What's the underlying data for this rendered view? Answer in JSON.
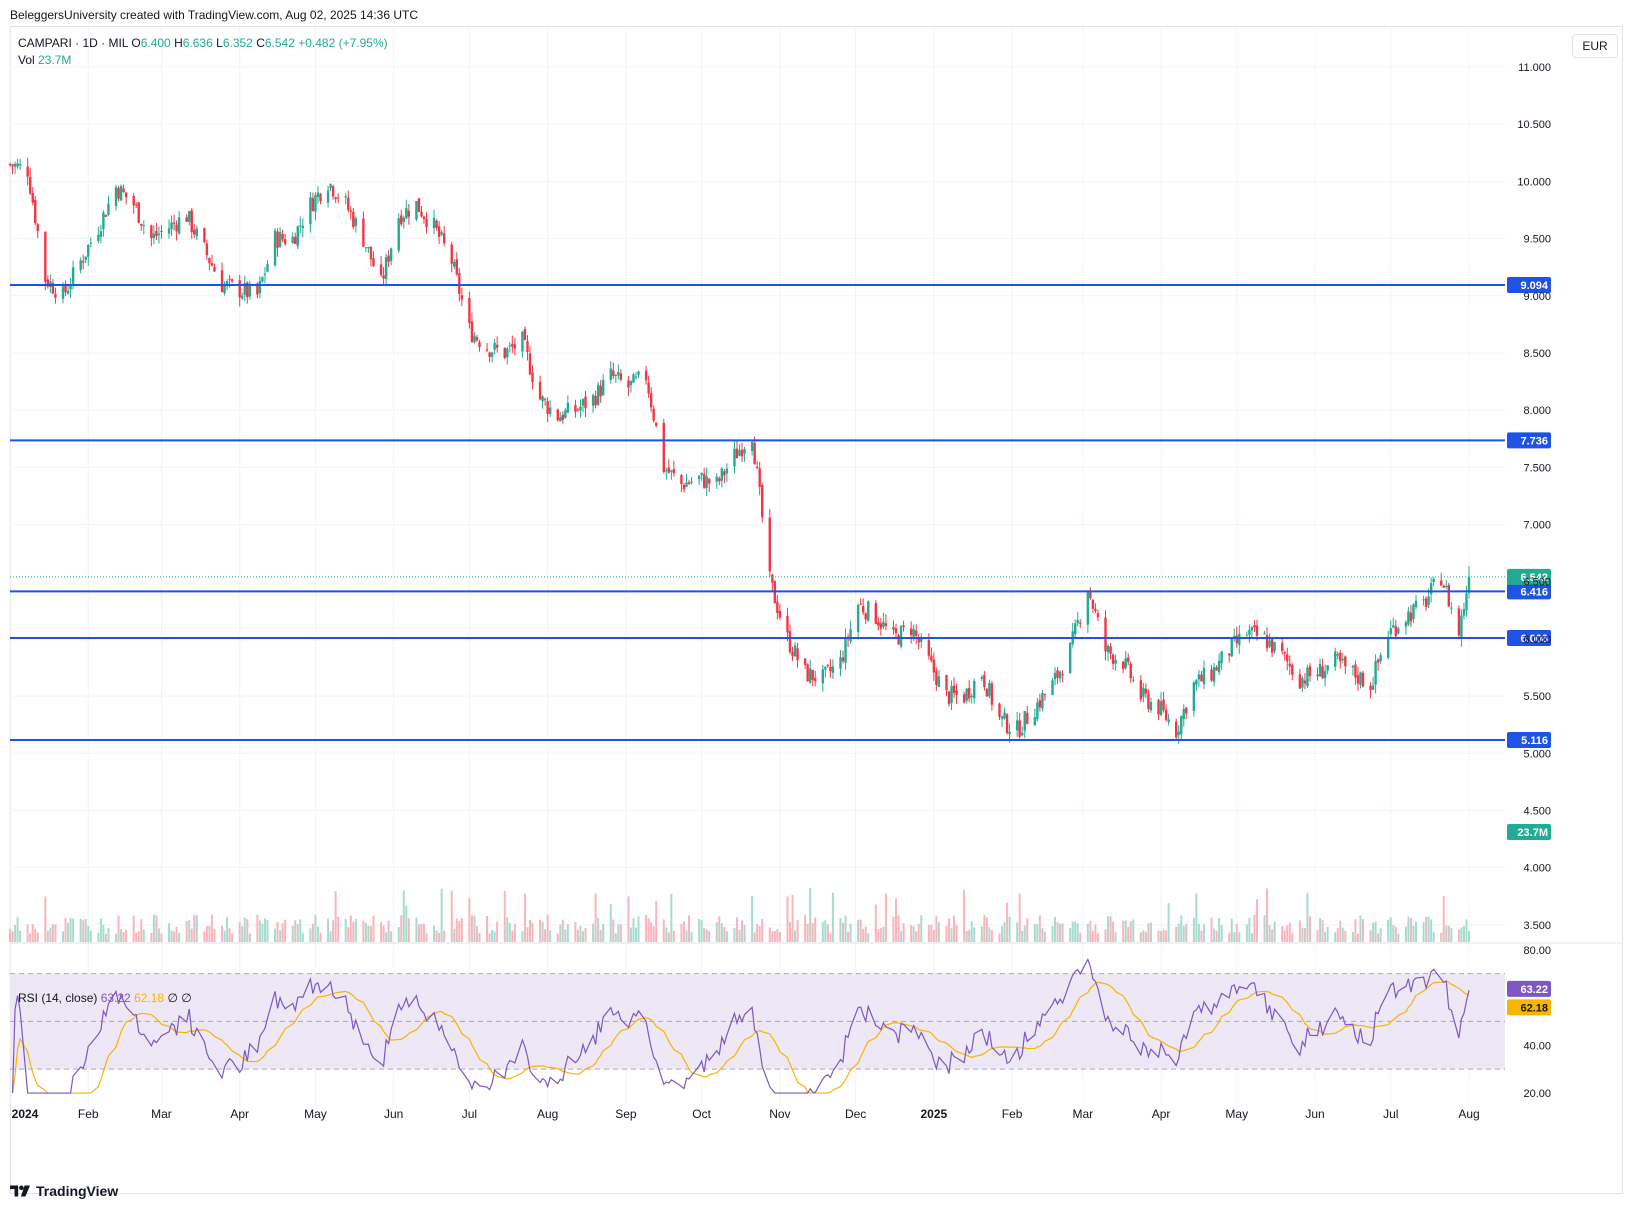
{
  "header": {
    "credit": "BeleggersUniversity created with TradingView.com, Aug 02, 2025 14:36 UTC"
  },
  "legend": {
    "symbol": "CAMPARI · 1D · MIL",
    "open_label": "O",
    "open": "6.400",
    "high_label": "H",
    "high": "6.636",
    "low_label": "L",
    "low": "6.352",
    "close_label": "C",
    "close": "6.542",
    "change": "+0.482 (+7.95%)",
    "vol_label": "Vol",
    "vol": "23.7M"
  },
  "rsi_legend": {
    "label": "RSI (14, close)",
    "rsi": "63.22",
    "ma": "62.18",
    "extra1": "∅",
    "extra2": "∅"
  },
  "currency": "EUR",
  "footer": {
    "brand": "TradingView"
  },
  "colors": {
    "up": "#22ab94",
    "down": "#f23645",
    "line": "#1e53e5",
    "rsi": "#7e57c2",
    "rsi_ma": "#f7b500",
    "rsi_band": "#ede7f6"
  },
  "chart_data": [
    {
      "type": "candlestick",
      "title": "CAMPARI · 1D · MIL",
      "ylim": [
        3.35,
        11.35
      ],
      "y_ticks": [
        "11.000",
        "10.500",
        "10.000",
        "9.500",
        "9.000",
        "8.500",
        "8.000",
        "7.500",
        "7.000",
        "6.500",
        "6.000",
        "5.500",
        "5.000",
        "4.500",
        "4.000",
        "3.500"
      ],
      "x_ticks": [
        "2024",
        "Feb",
        "Mar",
        "Apr",
        "May",
        "Jun",
        "Jul",
        "Aug",
        "Sep",
        "Oct",
        "Nov",
        "Dec",
        "2025",
        "Feb",
        "Mar",
        "Apr",
        "May",
        "Jun",
        "Jul",
        "Aug"
      ],
      "horizontal_levels": [
        "9.094",
        "7.736",
        "6.416",
        "6.008",
        "5.116"
      ],
      "last_price": "6.542",
      "volume_last": "23.7M",
      "close_path": [
        [
          "2024-01-01",
          10.15
        ],
        [
          "2024-01-08",
          10.1
        ],
        [
          "2024-01-15",
          9.15
        ],
        [
          "2024-01-22",
          9.0
        ],
        [
          "2024-01-29",
          9.3
        ],
        [
          "2024-02-05",
          9.6
        ],
        [
          "2024-02-12",
          9.95
        ],
        [
          "2024-02-19",
          9.8
        ],
        [
          "2024-02-26",
          9.5
        ],
        [
          "2024-03-04",
          9.6
        ],
        [
          "2024-03-11",
          9.7
        ],
        [
          "2024-03-18",
          9.4
        ],
        [
          "2024-03-25",
          9.1
        ],
        [
          "2024-04-01",
          9.05
        ],
        [
          "2024-04-08",
          9.0
        ],
        [
          "2024-04-15",
          9.5
        ],
        [
          "2024-04-22",
          9.5
        ],
        [
          "2024-04-29",
          9.8
        ],
        [
          "2024-05-06",
          10.0
        ],
        [
          "2024-05-13",
          9.8
        ],
        [
          "2024-05-20",
          9.5
        ],
        [
          "2024-05-27",
          9.1
        ],
        [
          "2024-06-03",
          9.7
        ],
        [
          "2024-06-10",
          9.8
        ],
        [
          "2024-06-17",
          9.6
        ],
        [
          "2024-06-24",
          9.3
        ],
        [
          "2024-07-01",
          8.7
        ],
        [
          "2024-07-08",
          8.55
        ],
        [
          "2024-07-15",
          8.5
        ],
        [
          "2024-07-22",
          8.6
        ],
        [
          "2024-07-29",
          8.1
        ],
        [
          "2024-08-05",
          7.95
        ],
        [
          "2024-08-12",
          8.0
        ],
        [
          "2024-08-19",
          8.1
        ],
        [
          "2024-08-26",
          8.3
        ],
        [
          "2024-09-02",
          8.2
        ],
        [
          "2024-09-09",
          8.3
        ],
        [
          "2024-09-16",
          7.5
        ],
        [
          "2024-09-23",
          7.35
        ],
        [
          "2024-09-30",
          7.4
        ],
        [
          "2024-10-07",
          7.35
        ],
        [
          "2024-10-14",
          7.6
        ],
        [
          "2024-10-21",
          7.8
        ],
        [
          "2024-10-28",
          6.5
        ],
        [
          "2024-11-04",
          6.0
        ],
        [
          "2024-11-11",
          5.7
        ],
        [
          "2024-11-18",
          5.65
        ],
        [
          "2024-11-25",
          5.8
        ],
        [
          "2024-12-02",
          6.3
        ],
        [
          "2024-12-09",
          6.2
        ],
        [
          "2024-12-16",
          6.0
        ],
        [
          "2024-12-23",
          6.1
        ],
        [
          "2025-01-06",
          5.5
        ],
        [
          "2025-01-13",
          5.5
        ],
        [
          "2025-01-20",
          5.7
        ],
        [
          "2025-01-27",
          5.3
        ],
        [
          "2025-02-03",
          5.2
        ],
        [
          "2025-02-10",
          5.4
        ],
        [
          "2025-02-17",
          5.6
        ],
        [
          "2025-02-24",
          5.9
        ],
        [
          "2025-03-03",
          6.45
        ],
        [
          "2025-03-10",
          5.9
        ],
        [
          "2025-03-17",
          5.8
        ],
        [
          "2025-03-24",
          5.5
        ],
        [
          "2025-03-31",
          5.4
        ],
        [
          "2025-04-07",
          5.2
        ],
        [
          "2025-04-14",
          5.6
        ],
        [
          "2025-04-21",
          5.7
        ],
        [
          "2025-04-28",
          5.9
        ],
        [
          "2025-05-05",
          6.05
        ],
        [
          "2025-05-12",
          6.0
        ],
        [
          "2025-05-19",
          5.85
        ],
        [
          "2025-05-26",
          5.65
        ],
        [
          "2025-06-02",
          5.7
        ],
        [
          "2025-06-09",
          5.8
        ],
        [
          "2025-06-16",
          5.7
        ],
        [
          "2025-06-23",
          5.6
        ],
        [
          "2025-06-30",
          6.05
        ],
        [
          "2025-07-07",
          6.2
        ],
        [
          "2025-07-14",
          6.3
        ],
        [
          "2025-07-21",
          6.55
        ],
        [
          "2025-07-28",
          6.05
        ],
        [
          "2025-08-01",
          6.542
        ]
      ]
    },
    {
      "type": "line",
      "title": "RSI (14, close)",
      "ylim": [
        15,
        82
      ],
      "y_ticks": [
        "80.00",
        "40.00",
        "20.00"
      ],
      "bands": [
        30,
        50,
        70
      ],
      "last_rsi": "63.22",
      "last_ma": "62.18"
    }
  ]
}
